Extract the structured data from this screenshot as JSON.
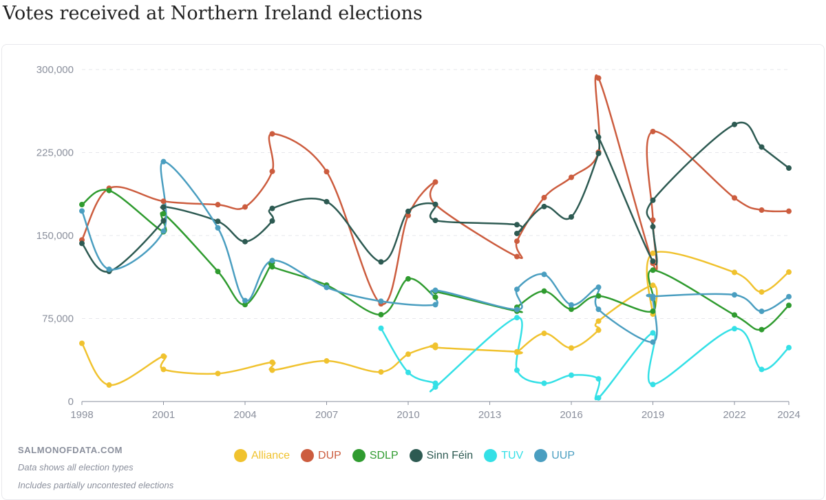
{
  "title": "Votes received at Northern Ireland elections",
  "brand": "SALMONOFDATA.COM",
  "notes": [
    "Data shows all election types",
    "Includes partially uncontested elections"
  ],
  "chart_data": {
    "type": "line",
    "title": "Votes received at Northern Ireland elections",
    "xlabel": "",
    "ylabel": "",
    "xlim": [
      1998,
      2024
    ],
    "ylim": [
      0,
      300000
    ],
    "x_ticks": [
      "1998",
      "2001",
      "2004",
      "2007",
      "2010",
      "2013",
      "2016",
      "2019",
      "2022",
      "2024"
    ],
    "x_tick_values": [
      1998,
      2001,
      2004,
      2007,
      2010,
      2013,
      2016,
      2019,
      2022,
      2024
    ],
    "y_ticks": [
      "0",
      "75,000",
      "150,000",
      "225,000",
      "300,000"
    ],
    "y_tick_values": [
      0,
      75000,
      150000,
      225000,
      300000
    ],
    "grid": "horizontal dashed",
    "legend_position": "bottom",
    "series": [
      {
        "name": "Alliance",
        "color": "#f0c22e",
        "points": [
          [
            1998,
            52600
          ],
          [
            1999,
            14900
          ],
          [
            2001,
            41000
          ],
          [
            2001,
            29000
          ],
          [
            2003,
            25300
          ],
          [
            2005,
            35500
          ],
          [
            2005,
            28300
          ],
          [
            2007,
            36700
          ],
          [
            2009,
            26700
          ],
          [
            2010,
            42800
          ],
          [
            2011,
            50900
          ],
          [
            2011,
            48800
          ],
          [
            2014,
            45000
          ],
          [
            2014,
            44500
          ],
          [
            2015,
            61600
          ],
          [
            2016,
            48400
          ],
          [
            2017,
            64500
          ],
          [
            2017,
            72700
          ],
          [
            2019,
            105000
          ],
          [
            2019,
            79000
          ],
          [
            2019,
            134000
          ],
          [
            2022,
            116700
          ],
          [
            2023,
            99000
          ],
          [
            2024,
            117000
          ]
        ]
      },
      {
        "name": "DUP",
        "color": "#cc5c3e",
        "points": [
          [
            1998,
            146000
          ],
          [
            1999,
            192700
          ],
          [
            2001,
            181000
          ],
          [
            2003,
            177900
          ],
          [
            2004,
            175800
          ],
          [
            2005,
            208000
          ],
          [
            2005,
            241900
          ],
          [
            2007,
            207700
          ],
          [
            2009,
            88300
          ],
          [
            2010,
            168200
          ],
          [
            2011,
            198400
          ],
          [
            2011,
            178000
          ],
          [
            2014,
            131000
          ],
          [
            2014,
            144900
          ],
          [
            2015,
            184300
          ],
          [
            2016,
            202600
          ],
          [
            2017,
            225400
          ],
          [
            2017,
            292300
          ],
          [
            2019,
            124900
          ],
          [
            2019,
            164000
          ],
          [
            2019,
            244000
          ],
          [
            2022,
            184000
          ],
          [
            2023,
            173000
          ],
          [
            2024,
            172000
          ]
        ]
      },
      {
        "name": "SDLP",
        "color": "#2f9b2f",
        "points": [
          [
            1998,
            178000
          ],
          [
            1999,
            190700
          ],
          [
            2001,
            153400
          ],
          [
            2001,
            169800
          ],
          [
            2003,
            117500
          ],
          [
            2004,
            87600
          ],
          [
            2005,
            125600
          ],
          [
            2005,
            121700
          ],
          [
            2007,
            105200
          ],
          [
            2009,
            78500
          ],
          [
            2010,
            110900
          ],
          [
            2011,
            94300
          ],
          [
            2011,
            99300
          ],
          [
            2014,
            81600
          ],
          [
            2014,
            85200
          ],
          [
            2015,
            99800
          ],
          [
            2016,
            83400
          ],
          [
            2017,
            95400
          ],
          [
            2019,
            81600
          ],
          [
            2019,
            118700
          ],
          [
            2022,
            78200
          ],
          [
            2023,
            65000
          ],
          [
            2024,
            86900
          ]
        ]
      },
      {
        "name": "Sinn Féin",
        "color": "#2d5a52",
        "points": [
          [
            1998,
            142900
          ],
          [
            1999,
            117600
          ],
          [
            2001,
            163300
          ],
          [
            2001,
            175900
          ],
          [
            2003,
            162800
          ],
          [
            2004,
            144500
          ],
          [
            2005,
            163200
          ],
          [
            2005,
            174500
          ],
          [
            2007,
            180600
          ],
          [
            2009,
            126200
          ],
          [
            2010,
            171900
          ],
          [
            2011,
            178200
          ],
          [
            2011,
            163700
          ],
          [
            2014,
            159800
          ],
          [
            2014,
            151900
          ],
          [
            2015,
            176200
          ],
          [
            2016,
            166800
          ],
          [
            2017,
            224200
          ],
          [
            2017,
            238900
          ],
          [
            2019,
            126800
          ],
          [
            2019,
            158000
          ],
          [
            2019,
            181900
          ],
          [
            2022,
            250400
          ],
          [
            2023,
            230000
          ],
          [
            2024,
            211000
          ]
        ]
      },
      {
        "name": "TUV",
        "color": "#34e0e6",
        "points": [
          [
            2009,
            66200
          ],
          [
            2010,
            26300
          ],
          [
            2011,
            16500
          ],
          [
            2011,
            13100
          ],
          [
            2014,
            75800
          ],
          [
            2014,
            28300
          ],
          [
            2015,
            16500
          ],
          [
            2016,
            23800
          ],
          [
            2017,
            20500
          ],
          [
            2017,
            3300
          ],
          [
            2019,
            62000
          ],
          [
            2019,
            15400
          ],
          [
            2022,
            65800
          ],
          [
            2023,
            29000
          ],
          [
            2024,
            48700
          ]
        ]
      },
      {
        "name": "UUP",
        "color": "#4a9ec0",
        "points": [
          [
            1998,
            172200
          ],
          [
            1999,
            119500
          ],
          [
            2001,
            154000
          ],
          [
            2001,
            216800
          ],
          [
            2003,
            156900
          ],
          [
            2004,
            91200
          ],
          [
            2005,
            127400
          ],
          [
            2007,
            103100
          ],
          [
            2009,
            90600
          ],
          [
            2011,
            87500
          ],
          [
            2011,
            100500
          ],
          [
            2014,
            83100
          ],
          [
            2014,
            101400
          ],
          [
            2015,
            114900
          ],
          [
            2016,
            87300
          ],
          [
            2017,
            103300
          ],
          [
            2017,
            83300
          ],
          [
            2019,
            53700
          ],
          [
            2019,
            93100
          ],
          [
            2019,
            95000
          ],
          [
            2022,
            96400
          ],
          [
            2023,
            81500
          ],
          [
            2024,
            94800
          ]
        ]
      }
    ]
  }
}
